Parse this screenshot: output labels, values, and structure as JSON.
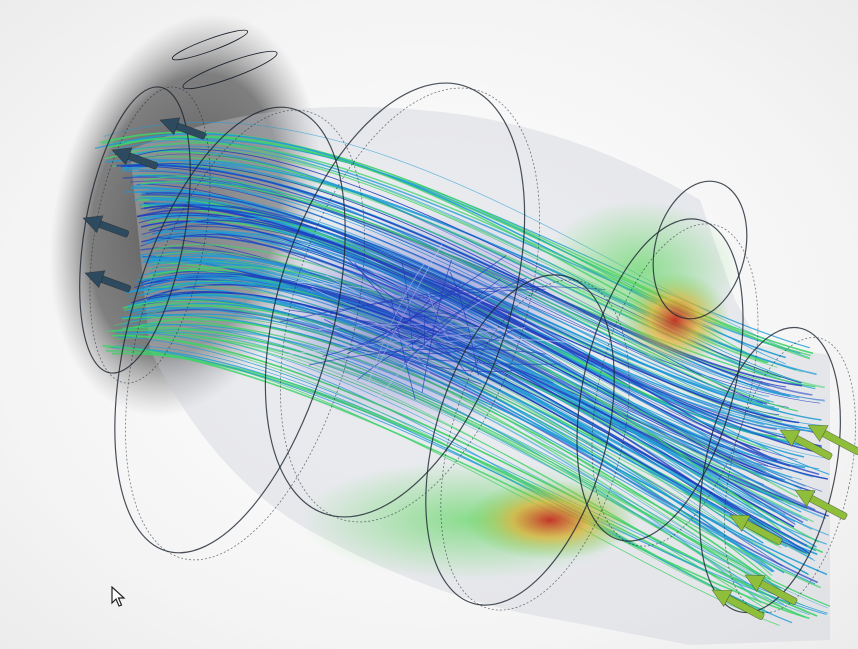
{
  "scene": {
    "subject": "cfd-flow-streamlines",
    "colors": {
      "background": "#f4f4f4",
      "shadow": "#5a5a5a",
      "low_velocity": "#1f3fbf",
      "mid_low_velocity": "#1e9bd6",
      "mid_velocity": "#3fd26a",
      "mid_high_velocity": "#d8d63a",
      "high_velocity": "#cc2a1a",
      "inlet_arrow": "#8fbf3a",
      "outlet_arrow": "#2d4a5e",
      "shell_outline": "#1c2430"
    },
    "icons": {
      "cursor": "mouse-pointer-icon",
      "inlet": "arrow-icon",
      "outlet": "arrow-icon"
    }
  }
}
